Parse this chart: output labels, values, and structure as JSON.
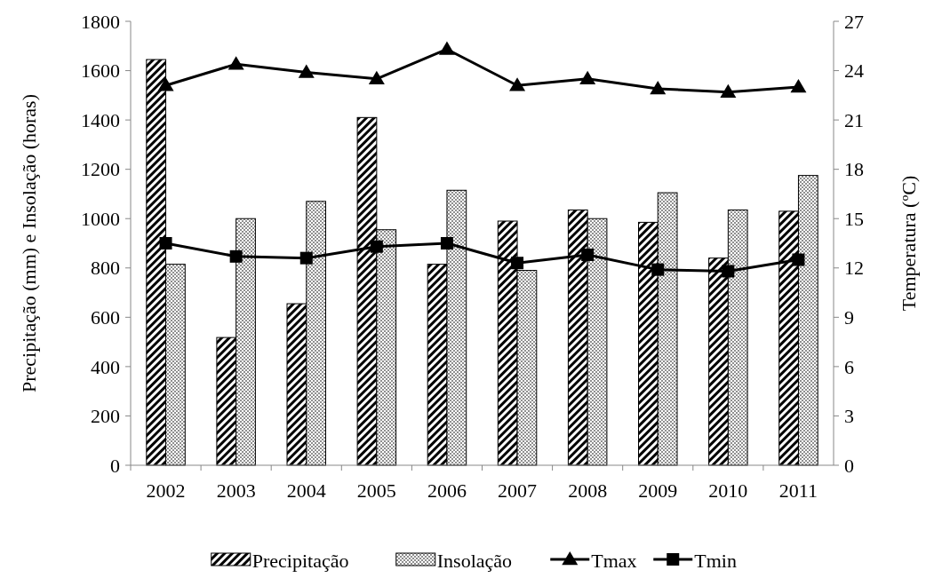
{
  "chart_data": {
    "type": "bar",
    "categories": [
      "2002",
      "2003",
      "2004",
      "2005",
      "2006",
      "2007",
      "2008",
      "2009",
      "2010",
      "2011"
    ],
    "series": [
      {
        "name": "Precipitação",
        "color": "#000000",
        "values": [
          1645,
          518,
          655,
          1410,
          815,
          990,
          1035,
          985,
          840,
          1030
        ]
      },
      {
        "name": "Insolação",
        "color": "#000000",
        "values": [
          815,
          1000,
          1070,
          955,
          1115,
          790,
          1000,
          1105,
          1035,
          1175
        ]
      },
      {
        "name": "Tmax",
        "type": "line",
        "axis": "y2",
        "color": "#000000",
        "marker": "triangle",
        "values": [
          23.1,
          24.4,
          23.9,
          23.5,
          25.3,
          23.1,
          23.5,
          22.9,
          22.7,
          23.0
        ]
      },
      {
        "name": "Tmin",
        "type": "line",
        "axis": "y2",
        "color": "#000000",
        "marker": "square",
        "values": [
          13.5,
          12.7,
          12.6,
          13.3,
          13.5,
          12.3,
          12.8,
          11.9,
          11.8,
          12.5
        ]
      }
    ],
    "ylabel": "Precipitação (mm) e Insolação (horas)",
    "y2label": "Temperatura (ºC)",
    "ylim": [
      0,
      1800
    ],
    "yticks": [
      0,
      200,
      400,
      600,
      800,
      1000,
      1200,
      1400,
      1600,
      1800
    ],
    "y2lim": [
      0,
      27
    ],
    "y2ticks": [
      0,
      3,
      6,
      9,
      12,
      15,
      18,
      21,
      24,
      27
    ],
    "grid": false,
    "legend": "bottom"
  }
}
